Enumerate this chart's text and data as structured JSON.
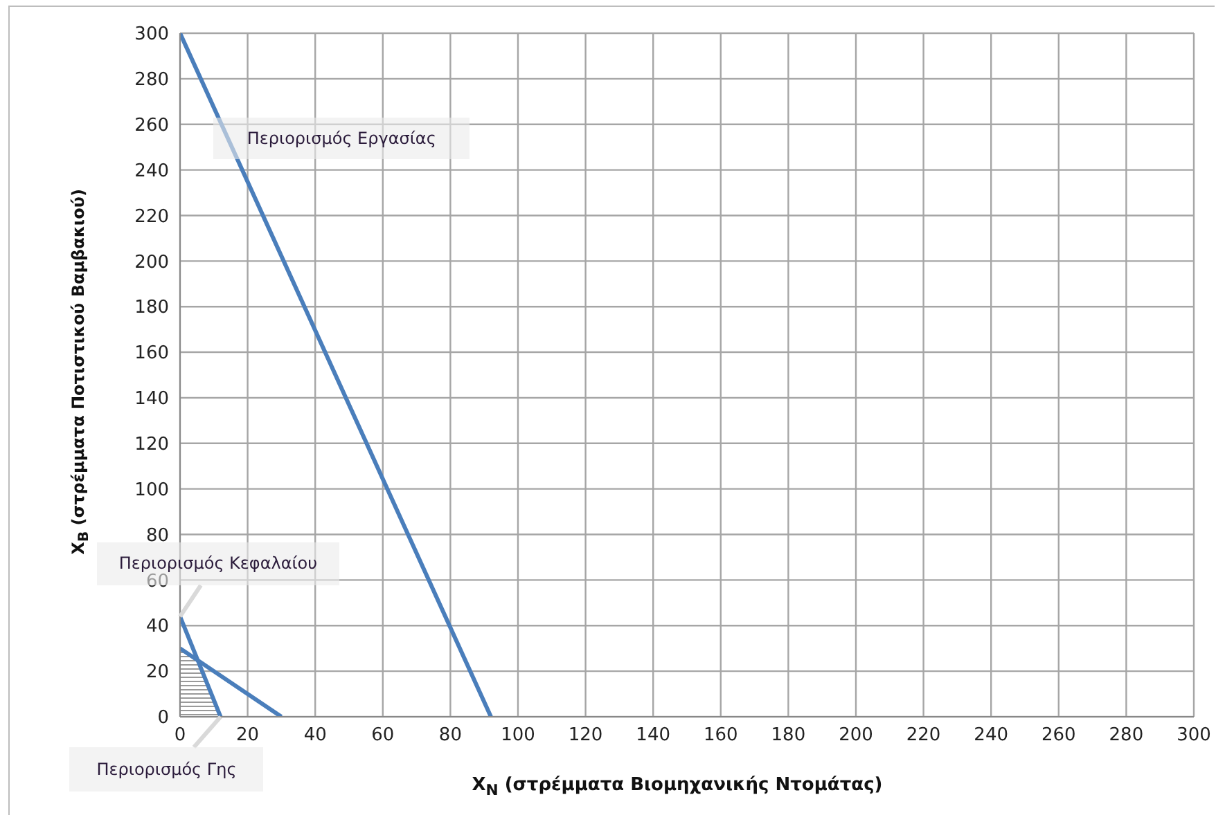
{
  "chart_data": {
    "type": "line",
    "xlabel": "X$_{N}$ (στρέμματα Βιομηχανικής Ντομάτας)",
    "ylabel": "X$_{B}$ (στρέμματα Ποτιστικού Βαμβακιού)",
    "series": [
      {
        "color": "#4a7ebb",
        "x": [
          0,
          92
        ],
        "values": [
          300,
          0
        ]
      },
      {
        "color": "#4a7ebb",
        "x": [
          0,
          12
        ],
        "values": [
          44,
          0
        ]
      },
      {
        "color": "#4a7ebb",
        "x": [
          0,
          30
        ],
        "values": [
          30,
          0
        ]
      },
      {
        "type": "area",
        "color": "#808080",
        "x": [
          0,
          5,
          12
        ],
        "values": [
          30,
          25,
          0
        ]
      }
    ],
    "annotations": [
      {
        "text": "Περιορισμός Εργασίας",
        "x": 14,
        "y": 254
      },
      {
        "text": "Περιορισμός Κεφαλαίου",
        "x": 0,
        "y": 44
      },
      {
        "text": "Περιορισμός Γης",
        "x": 12,
        "y": 0
      }
    ],
    "xlim": [
      0,
      300
    ],
    "xticks": [
      0,
      20,
      40,
      60,
      80,
      100,
      120,
      140,
      160,
      180,
      200,
      220,
      240,
      260,
      280,
      300
    ],
    "ylim": [
      0,
      300
    ],
    "yticks": [
      0,
      20,
      40,
      60,
      80,
      100,
      120,
      140,
      160,
      180,
      200,
      220,
      240,
      260,
      280,
      300
    ],
    "grid": true,
    "marker": "none",
    "line_style": "solid"
  }
}
